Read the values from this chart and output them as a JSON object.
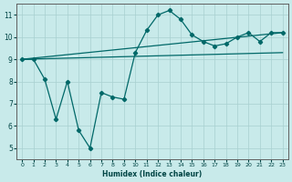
{
  "xlabel": "Humidex (Indice chaleur)",
  "bg_color": "#c8eaea",
  "grid_color": "#a8d0d0",
  "line_color": "#006868",
  "xlim": [
    -0.5,
    23.5
  ],
  "ylim": [
    4.5,
    11.5
  ],
  "xticks": [
    0,
    1,
    2,
    3,
    4,
    5,
    6,
    7,
    8,
    9,
    10,
    11,
    12,
    13,
    14,
    15,
    16,
    17,
    18,
    19,
    20,
    21,
    22,
    23
  ],
  "yticks": [
    5,
    6,
    7,
    8,
    9,
    10,
    11
  ],
  "series1_x": [
    0,
    1,
    2,
    3,
    4,
    5,
    6,
    7,
    8,
    9,
    10,
    11,
    12,
    13,
    14,
    15,
    16,
    17,
    18,
    19,
    20,
    21,
    22,
    23
  ],
  "series1_y": [
    9.0,
    9.0,
    8.1,
    6.3,
    8.0,
    5.8,
    5.0,
    7.5,
    7.3,
    7.2,
    9.3,
    10.3,
    11.0,
    11.2,
    10.8,
    10.1,
    9.8,
    9.6,
    9.7,
    10.0,
    10.2,
    9.8,
    10.2,
    10.2
  ],
  "series2_x": [
    0,
    23
  ],
  "series2_y": [
    9.0,
    10.2
  ],
  "series3_x": [
    0,
    23
  ],
  "series3_y": [
    9.0,
    9.3
  ]
}
